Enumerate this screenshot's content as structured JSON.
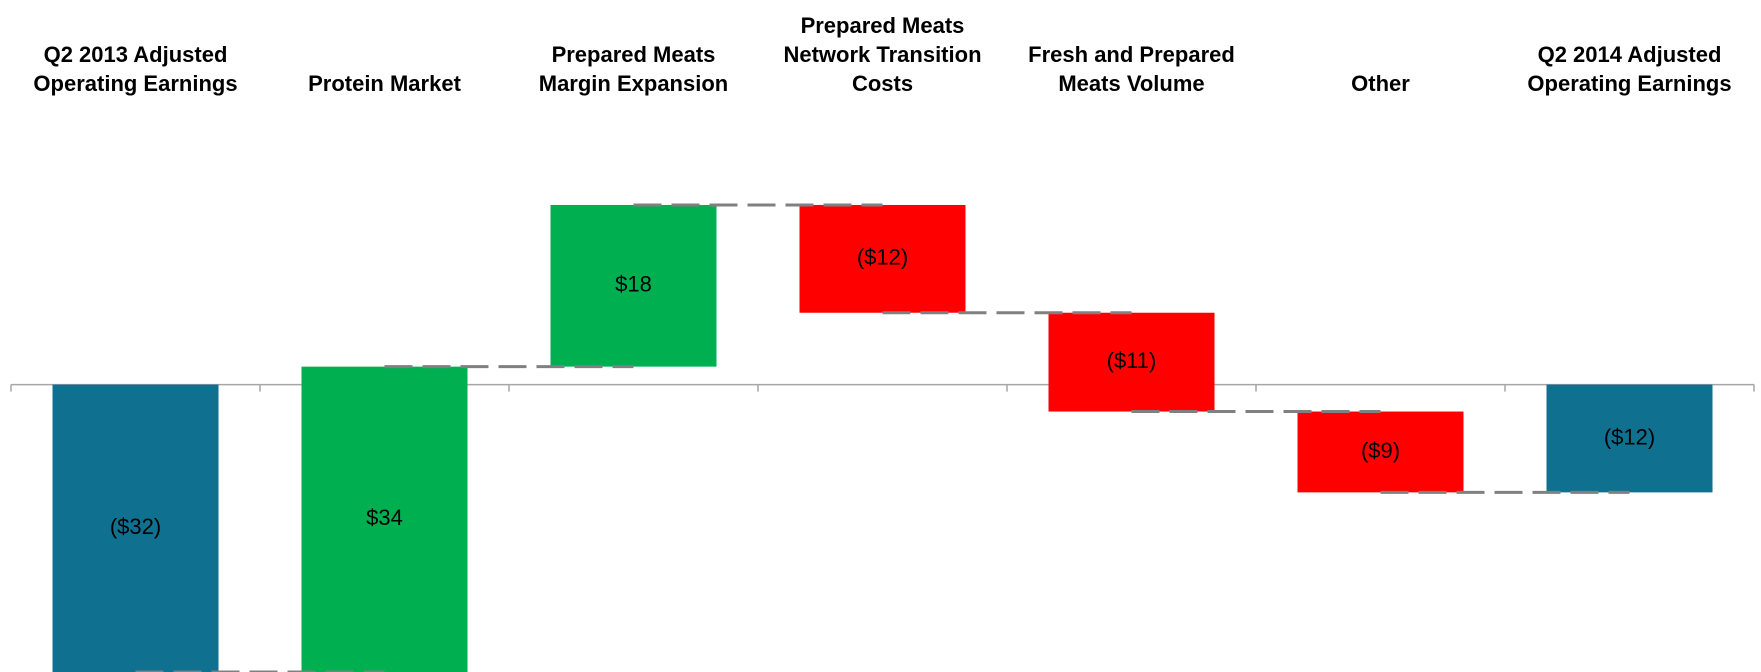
{
  "chart_data": {
    "type": "waterfall",
    "categories": [
      "Q2 2013 Adjusted\nOperating Earnings",
      "Protein Market",
      "Prepared Meats\nMargin Expansion",
      "Prepared Meats\nNetwork Transition\nCosts",
      "Fresh and Prepared\nMeats Volume",
      "Other",
      "Q2 2014 Adjusted\nOperating Earnings"
    ],
    "values": [
      -32,
      34,
      18,
      -12,
      -11,
      -9,
      -12
    ],
    "value_labels": [
      "($32)",
      "$34",
      "$18",
      "($12)",
      "($11)",
      "($9)",
      "($12)"
    ],
    "is_total": [
      true,
      false,
      false,
      false,
      false,
      false,
      true
    ],
    "colors": [
      "#10708f",
      "#00b050",
      "#00b050",
      "#ff0000",
      "#ff0000",
      "#ff0000",
      "#10708f"
    ],
    "ylim": [
      -32,
      22
    ]
  }
}
